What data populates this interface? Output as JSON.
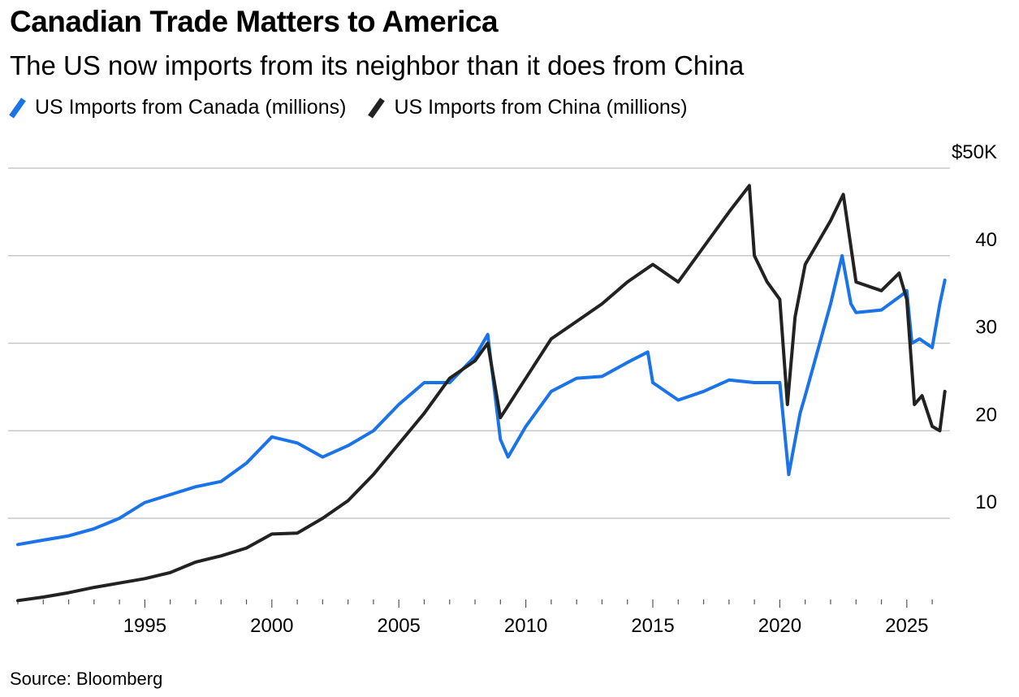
{
  "title": "Canadian Trade Matters to America",
  "subtitle": "The US now imports from its neighbor than it does from China",
  "source": "Source: Bloomberg",
  "chart_data": {
    "type": "line",
    "title": "Canadian Trade Matters to America",
    "subtitle": "The US now imports from its neighbor than it does from China",
    "xlabel": "",
    "ylabel": "",
    "xlim": [
      1990,
      2026.7
    ],
    "ylim": [
      0,
      52
    ],
    "y_ticks": [
      {
        "value": 50,
        "label": "$50K"
      },
      {
        "value": 40,
        "label": "40"
      },
      {
        "value": 30,
        "label": "30"
      },
      {
        "value": 20,
        "label": "20"
      },
      {
        "value": 10,
        "label": "10"
      }
    ],
    "x_tick_labels": [
      "1995",
      "2000",
      "2005",
      "2010",
      "2015",
      "2020",
      "2025"
    ],
    "x_tick_values": [
      1995,
      2000,
      2005,
      2010,
      2015,
      2020,
      2025
    ],
    "grid": true,
    "legend_position": "top-left",
    "series": [
      {
        "name": "US Imports from Canada (millions)",
        "color": "#1a73e8",
        "points": [
          [
            1990.0,
            7.0
          ],
          [
            1991.0,
            7.5
          ],
          [
            1992.0,
            8.0
          ],
          [
            1993.0,
            8.8
          ],
          [
            1994.0,
            10.0
          ],
          [
            1995.0,
            11.8
          ],
          [
            1996.0,
            12.7
          ],
          [
            1997.0,
            13.6
          ],
          [
            1998.0,
            14.2
          ],
          [
            1999.0,
            16.3
          ],
          [
            2000.0,
            19.3
          ],
          [
            2001.0,
            18.6
          ],
          [
            2002.0,
            17.0
          ],
          [
            2003.0,
            18.3
          ],
          [
            2004.0,
            20.0
          ],
          [
            2005.0,
            23.0
          ],
          [
            2006.0,
            25.5
          ],
          [
            2007.0,
            25.5
          ],
          [
            2008.0,
            28.5
          ],
          [
            2008.5,
            31.0
          ],
          [
            2009.0,
            19.0
          ],
          [
            2009.3,
            17.0
          ],
          [
            2010.0,
            20.5
          ],
          [
            2011.0,
            24.5
          ],
          [
            2012.0,
            26.0
          ],
          [
            2013.0,
            26.2
          ],
          [
            2014.0,
            27.8
          ],
          [
            2014.8,
            29.0
          ],
          [
            2015.0,
            25.5
          ],
          [
            2016.0,
            23.5
          ],
          [
            2017.0,
            24.5
          ],
          [
            2018.0,
            25.8
          ],
          [
            2019.0,
            25.5
          ],
          [
            2020.0,
            25.5
          ],
          [
            2020.35,
            15.0
          ],
          [
            2020.8,
            22.0
          ],
          [
            2021.0,
            24.0
          ],
          [
            2022.0,
            34.5
          ],
          [
            2022.45,
            40.0
          ],
          [
            2022.8,
            34.5
          ],
          [
            2023.0,
            33.5
          ],
          [
            2024.0,
            33.8
          ],
          [
            2024.8,
            35.5
          ],
          [
            2025.0,
            36.0
          ],
          [
            2025.2,
            30.0
          ],
          [
            2025.5,
            30.5
          ],
          [
            2026.0,
            29.5
          ],
          [
            2026.3,
            34.5
          ],
          [
            2026.5,
            37.2
          ]
        ]
      },
      {
        "name": "US Imports from China (millions)",
        "color": "#222222",
        "points": [
          [
            1990.0,
            0.6
          ],
          [
            1991.0,
            1.0
          ],
          [
            1992.0,
            1.5
          ],
          [
            1993.0,
            2.1
          ],
          [
            1994.0,
            2.6
          ],
          [
            1995.0,
            3.1
          ],
          [
            1996.0,
            3.8
          ],
          [
            1997.0,
            5.0
          ],
          [
            1998.0,
            5.7
          ],
          [
            1999.0,
            6.6
          ],
          [
            2000.0,
            8.2
          ],
          [
            2001.0,
            8.3
          ],
          [
            2002.0,
            10.0
          ],
          [
            2003.0,
            12.0
          ],
          [
            2004.0,
            15.0
          ],
          [
            2005.0,
            18.5
          ],
          [
            2006.0,
            22.0
          ],
          [
            2007.0,
            26.0
          ],
          [
            2008.0,
            28.0
          ],
          [
            2008.5,
            30.0
          ],
          [
            2009.0,
            21.5
          ],
          [
            2010.0,
            26.0
          ],
          [
            2011.0,
            30.5
          ],
          [
            2012.0,
            32.5
          ],
          [
            2013.0,
            34.5
          ],
          [
            2014.0,
            37.0
          ],
          [
            2015.0,
            39.0
          ],
          [
            2016.0,
            37.0
          ],
          [
            2017.0,
            41.0
          ],
          [
            2018.0,
            45.0
          ],
          [
            2018.8,
            48.0
          ],
          [
            2019.0,
            40.0
          ],
          [
            2019.5,
            37.0
          ],
          [
            2020.0,
            35.0
          ],
          [
            2020.3,
            23.0
          ],
          [
            2020.6,
            33.0
          ],
          [
            2021.0,
            39.0
          ],
          [
            2022.0,
            44.0
          ],
          [
            2022.5,
            47.0
          ],
          [
            2023.0,
            37.0
          ],
          [
            2024.0,
            36.0
          ],
          [
            2024.7,
            38.0
          ],
          [
            2025.0,
            35.0
          ],
          [
            2025.3,
            23.0
          ],
          [
            2025.6,
            24.0
          ],
          [
            2026.0,
            20.5
          ],
          [
            2026.3,
            20.0
          ],
          [
            2026.5,
            24.5
          ]
        ]
      }
    ]
  }
}
